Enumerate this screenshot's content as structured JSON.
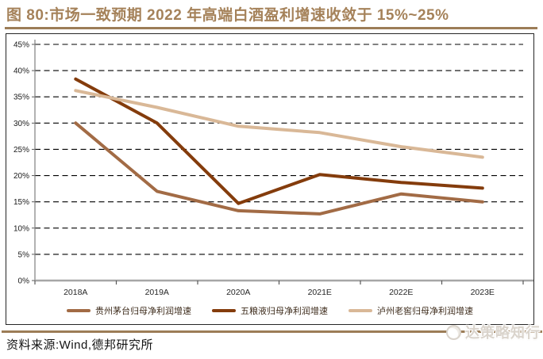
{
  "header": {
    "title": "图 80:市场一致预期 2022 年高端白酒盈利增速收敛于 15%~25%"
  },
  "chart_data": {
    "type": "line",
    "title": "市场一致预期 2022 年高端白酒盈利增速收敛于 15%~25%",
    "categories": [
      "2018A",
      "2019A",
      "2020A",
      "2021E",
      "2022E",
      "2023E"
    ],
    "series": [
      {
        "name": "贵州茅台归母净利润增速",
        "color": "#A26B45",
        "values": [
          30.0,
          17.0,
          13.3,
          12.7,
          16.5,
          15.0
        ]
      },
      {
        "name": "五粮液归母净利润增速",
        "color": "#843C0C",
        "values": [
          38.4,
          30.0,
          14.7,
          20.2,
          18.7,
          17.6
        ]
      },
      {
        "name": "泸州老窖归母净利润增速",
        "color": "#D9B897",
        "values": [
          36.2,
          33.0,
          29.4,
          28.2,
          25.5,
          23.5
        ]
      }
    ],
    "ylim": [
      0,
      45
    ],
    "y_tick_labels": [
      "0%",
      "5%",
      "10%",
      "15%",
      "20%",
      "25%",
      "30%",
      "35%",
      "40%",
      "45%"
    ],
    "xlabel": "",
    "ylabel": "",
    "grid": "horizontal-dashed",
    "legend_position": "bottom"
  },
  "footer": {
    "source": "资料来源:Wind,德邦研究所"
  },
  "watermark": {
    "text": "达策略知行",
    "icon": "logo-circle-icon"
  }
}
